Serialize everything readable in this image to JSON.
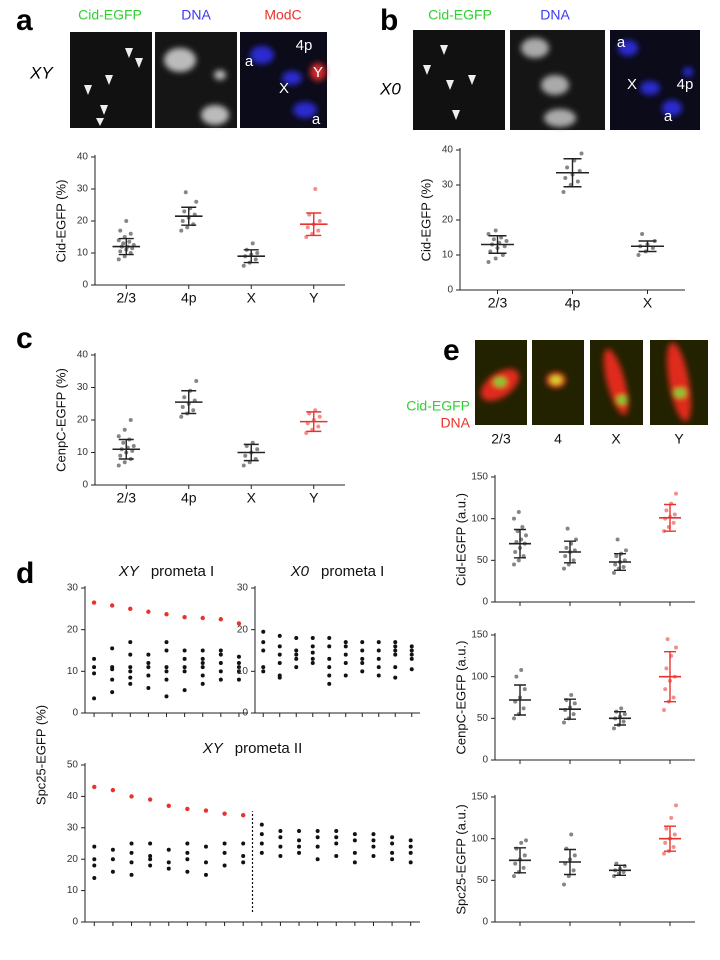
{
  "panels": {
    "a": {
      "letter": "a",
      "genotype": "XY",
      "channels": [
        "Cid-EGFP",
        "DNA",
        "ModC"
      ],
      "overlay": [
        "4p",
        "Y",
        "X",
        "a",
        "a"
      ]
    },
    "b": {
      "letter": "b",
      "genotype": "X0",
      "channels": [
        "Cid-EGFP",
        "DNA"
      ],
      "overlay": [
        "a",
        "X",
        "4p",
        "a"
      ]
    },
    "c": {
      "letter": "c"
    },
    "d": {
      "letter": "d"
    },
    "e": {
      "letter": "e",
      "channels": [
        "Cid-EGFP",
        "DNA"
      ],
      "images": [
        "2/3",
        "4",
        "X",
        "Y"
      ]
    }
  },
  "chart_data": [
    {
      "type": "dot-plot",
      "ylabel": "Cid-EGFP (%)",
      "categories": [
        "2/3",
        "4p",
        "X",
        "Y"
      ],
      "points": [
        [
          8,
          9,
          10,
          10.5,
          11,
          11.5,
          12,
          12,
          12.5,
          13,
          13.5,
          14,
          15,
          16,
          17,
          20
        ],
        [
          17,
          18,
          19,
          20,
          21,
          22,
          23,
          24,
          26,
          29
        ],
        [
          6,
          7,
          8,
          9,
          9.5,
          10,
          11,
          13
        ],
        [
          15,
          16,
          17,
          18,
          19,
          20,
          22,
          30
        ]
      ],
      "means": [
        12,
        21.5,
        9,
        19
      ],
      "sds": [
        2.5,
        2.8,
        2,
        3.5
      ],
      "colors": [
        "#222222",
        "#222222",
        "#222222",
        "#e8332c"
      ],
      "ylim": [
        0,
        40
      ],
      "yticks": [
        0,
        10,
        20,
        30,
        40
      ]
    },
    {
      "type": "dot-plot",
      "ylabel": "Cid-EGFP (%)",
      "categories": [
        "2/3",
        "4p",
        "X"
      ],
      "points": [
        [
          8,
          9,
          10,
          11,
          12,
          12.5,
          13,
          13.5,
          14,
          14.5,
          15,
          16,
          17
        ],
        [
          28,
          30,
          31,
          32,
          33,
          34,
          35,
          37,
          39
        ],
        [
          10,
          11,
          12,
          12.5,
          13,
          14,
          16
        ]
      ],
      "means": [
        13,
        33.5,
        12.5
      ],
      "sds": [
        2.5,
        4,
        1.5
      ],
      "colors": [
        "#222222",
        "#222222",
        "#222222"
      ],
      "ylim": [
        0,
        40
      ],
      "yticks": [
        0,
        10,
        20,
        30,
        40
      ]
    },
    {
      "type": "dot-plot",
      "ylabel": "CenpC-EGFP (%)",
      "categories": [
        "2/3",
        "4p",
        "X",
        "Y"
      ],
      "points": [
        [
          6,
          7,
          8,
          9,
          10,
          10.5,
          11,
          11.5,
          12,
          13,
          14,
          15,
          17,
          20
        ],
        [
          21,
          22,
          23,
          24,
          25,
          26,
          27,
          29,
          32
        ],
        [
          6,
          7,
          8,
          9,
          10,
          11,
          12,
          13
        ],
        [
          16,
          17,
          18,
          19,
          20,
          21,
          22,
          23
        ]
      ],
      "means": [
        11,
        25.5,
        10,
        19.5
      ],
      "sds": [
        3,
        3.5,
        2.5,
        3
      ],
      "colors": [
        "#222222",
        "#222222",
        "#222222",
        "#e8332c"
      ],
      "ylim": [
        0,
        40
      ],
      "yticks": [
        0,
        10,
        20,
        30,
        40
      ]
    },
    {
      "type": "dot-plot",
      "ylabel": "Cid-EGFP (a.u.)",
      "categories": [
        null,
        null,
        null,
        null
      ],
      "points": [
        [
          45,
          50,
          55,
          60,
          65,
          70,
          72,
          75,
          80,
          85,
          90,
          100,
          108
        ],
        [
          40,
          45,
          50,
          55,
          60,
          62,
          65,
          70,
          75,
          88
        ],
        [
          35,
          40,
          42,
          45,
          48,
          50,
          55,
          58,
          62,
          75
        ],
        [
          85,
          90,
          95,
          100,
          102,
          105,
          110,
          118,
          130
        ]
      ],
      "means": [
        70,
        60,
        48,
        101
      ],
      "sds": [
        17,
        13,
        10,
        16
      ],
      "colors": [
        "#222222",
        "#222222",
        "#222222",
        "#e8332c"
      ],
      "ylim": [
        0,
        150
      ],
      "yticks": [
        0,
        50,
        100,
        150
      ]
    },
    {
      "type": "dot-plot",
      "ylabel": "CenpC-EGFP (a.u.)",
      "categories": [
        null,
        null,
        null,
        null
      ],
      "points": [
        [
          50,
          55,
          62,
          70,
          75,
          85,
          100,
          108
        ],
        [
          45,
          50,
          55,
          60,
          63,
          68,
          72,
          78
        ],
        [
          38,
          42,
          46,
          50,
          52,
          55,
          58,
          62
        ],
        [
          60,
          70,
          75,
          85,
          95,
          100,
          110,
          125,
          135,
          145
        ]
      ],
      "means": [
        72,
        61,
        50,
        100
      ],
      "sds": [
        18,
        12,
        8,
        30
      ],
      "colors": [
        "#222222",
        "#222222",
        "#222222",
        "#e8332c"
      ],
      "ylim": [
        0,
        150
      ],
      "yticks": [
        0,
        50,
        100,
        150
      ]
    },
    {
      "type": "dot-plot",
      "ylabel": "Spc25-EGFP (a.u.)",
      "categories": [
        null,
        null,
        null,
        null
      ],
      "points": [
        [
          55,
          60,
          65,
          70,
          75,
          80,
          88,
          95,
          98
        ],
        [
          45,
          55,
          62,
          70,
          75,
          80,
          88,
          105
        ],
        [
          55,
          58,
          60,
          62,
          64,
          67,
          70
        ],
        [
          82,
          85,
          90,
          95,
          100,
          105,
          112,
          125,
          140
        ]
      ],
      "means": [
        74,
        72,
        62,
        100
      ],
      "sds": [
        15,
        15,
        6,
        15
      ],
      "colors": [
        "#222222",
        "#222222",
        "#222222",
        "#e8332c"
      ],
      "ylim": [
        0,
        150
      ],
      "yticks": [
        0,
        50,
        100,
        150
      ]
    },
    {
      "type": "cell-strip",
      "title": "XY",
      "subtitle": "prometa I",
      "ylabel": "Spc25-EGFP (%)",
      "red_values": [
        26.5,
        25.8,
        25,
        24.3,
        23.7,
        23,
        22.8,
        22.5,
        21.5
      ],
      "black_values": [
        [
          3.5,
          9.5,
          11,
          13
        ],
        [
          5,
          8,
          10.5,
          11,
          15.5
        ],
        [
          7,
          8.5,
          10,
          11,
          14,
          17
        ],
        [
          6,
          9,
          11,
          12,
          14
        ],
        [
          4,
          8,
          10,
          11,
          15,
          17
        ],
        [
          5.5,
          10,
          11,
          13,
          15
        ],
        [
          7,
          9,
          11,
          12,
          13,
          15
        ],
        [
          8,
          10,
          12,
          14,
          15
        ],
        [
          8,
          10,
          11,
          12,
          13.5
        ]
      ],
      "point_color": "#111111",
      "highlight_color": "#e8332c",
      "ylim": [
        0,
        30
      ],
      "yticks": [
        0,
        10,
        20,
        30
      ]
    },
    {
      "type": "cell-strip",
      "title": "X0",
      "subtitle": "prometa I",
      "black_values": [
        [
          10,
          11,
          15,
          17,
          19.5
        ],
        [
          8.5,
          9,
          12,
          14,
          16,
          18.5
        ],
        [
          11,
          13,
          14,
          15,
          18
        ],
        [
          12,
          13,
          14.5,
          16,
          18
        ],
        [
          7,
          9,
          11,
          13,
          16,
          18
        ],
        [
          9,
          12,
          14,
          16,
          17
        ],
        [
          10,
          12,
          13,
          15,
          17
        ],
        [
          9,
          11,
          13,
          15,
          17
        ],
        [
          8.5,
          11,
          14,
          15,
          16,
          17
        ],
        [
          10.5,
          13,
          14,
          15,
          16
        ]
      ],
      "point_color": "#111111",
      "ylim": [
        0,
        30
      ],
      "yticks": [
        0,
        10,
        20,
        30
      ]
    },
    {
      "type": "cell-strip",
      "title": "XY",
      "subtitle": "prometa II",
      "red_values": [
        43,
        42,
        40,
        39,
        37,
        36,
        35.5,
        34.5,
        34,
        null,
        null,
        null,
        null,
        null,
        null,
        null,
        null,
        null
      ],
      "black_values": [
        [
          14,
          18,
          20,
          24
        ],
        [
          16,
          20,
          23
        ],
        [
          15,
          19,
          22,
          25
        ],
        [
          18,
          20,
          21,
          25
        ],
        [
          17,
          19,
          23
        ],
        [
          16,
          20,
          22,
          25
        ],
        [
          15,
          19,
          24
        ],
        [
          18,
          22,
          25
        ],
        [
          19,
          21,
          25
        ],
        [
          22,
          25,
          28,
          31
        ],
        [
          21,
          24,
          27,
          29
        ],
        [
          22,
          24,
          26,
          29
        ],
        [
          20,
          24,
          27,
          29
        ],
        [
          21,
          25,
          27,
          29
        ],
        [
          19,
          22,
          26,
          28
        ],
        [
          21,
          24,
          26,
          28
        ],
        [
          20,
          22,
          25,
          27
        ],
        [
          19,
          22,
          24,
          26
        ]
      ],
      "point_color": "#111111",
      "highlight_color": "#e8332c",
      "ylim": [
        0,
        50
      ],
      "yticks": [
        0,
        10,
        20,
        30,
        40,
        50
      ]
    }
  ]
}
